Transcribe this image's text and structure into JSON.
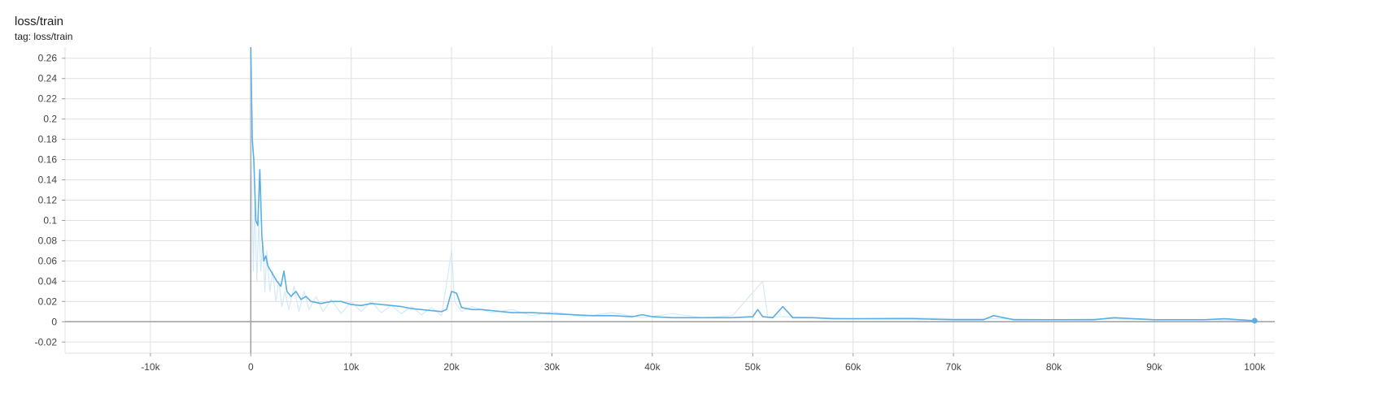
{
  "card": {
    "title": "loss/train",
    "subtitle": "tag: loss/train"
  },
  "chart_data": {
    "type": "line",
    "title": "loss/train",
    "subtitle": "tag: loss/train",
    "xlabel": "",
    "ylabel": "",
    "xlim": [
      -18500,
      102000
    ],
    "ylim": [
      -0.031,
      0.271
    ],
    "x_ticks": [
      -10000,
      0,
      10000,
      20000,
      30000,
      40000,
      50000,
      60000,
      70000,
      80000,
      90000,
      100000
    ],
    "x_tick_labels": [
      "-10k",
      "0",
      "10k",
      "20k",
      "30k",
      "40k",
      "50k",
      "60k",
      "70k",
      "80k",
      "90k",
      "100k"
    ],
    "y_ticks": [
      -0.02,
      0,
      0.02,
      0.04,
      0.06,
      0.08,
      0.1,
      0.12,
      0.14,
      0.16,
      0.18,
      0.2,
      0.22,
      0.24,
      0.26
    ],
    "y_tick_labels": [
      "-0.02",
      "0",
      "0.02",
      "0.04",
      "0.06",
      "0.08",
      "0.1",
      "0.12",
      "0.14",
      "0.16",
      "0.18",
      "0.2",
      "0.22",
      "0.24",
      "0.26"
    ],
    "grid": true,
    "colors": {
      "smoothed": "#5aaee3",
      "raw": "#d3e9f8",
      "grid": "#e0e0e0",
      "axis": "#9e9e9e"
    },
    "series": [
      {
        "role": "smoothed",
        "x": [
          0,
          150,
          300,
          500,
          700,
          900,
          1100,
          1300,
          1500,
          1700,
          2000,
          2300,
          2600,
          3000,
          3300,
          3600,
          4000,
          4500,
          5000,
          5500,
          6000,
          7000,
          8000,
          9000,
          10000,
          11000,
          12000,
          13000,
          14000,
          15000,
          16000,
          17000,
          18000,
          19000,
          19500,
          20000,
          20500,
          21000,
          22000,
          23000,
          24000,
          25000,
          26000,
          28000,
          30000,
          32000,
          34000,
          36000,
          38000,
          39000,
          40000,
          42000,
          44000,
          46000,
          48000,
          50000,
          50500,
          51000,
          52000,
          53000,
          54000,
          56000,
          58000,
          60000,
          63000,
          66000,
          70000,
          73000,
          74000,
          76000,
          80000,
          84000,
          86000,
          90000,
          95000,
          97000,
          100000
        ],
        "y": [
          0.27,
          0.18,
          0.16,
          0.1,
          0.095,
          0.15,
          0.085,
          0.06,
          0.065,
          0.055,
          0.05,
          0.045,
          0.04,
          0.035,
          0.05,
          0.03,
          0.025,
          0.03,
          0.022,
          0.025,
          0.02,
          0.018,
          0.02,
          0.02,
          0.017,
          0.016,
          0.018,
          0.017,
          0.016,
          0.015,
          0.013,
          0.012,
          0.011,
          0.01,
          0.012,
          0.03,
          0.028,
          0.014,
          0.012,
          0.012,
          0.011,
          0.01,
          0.009,
          0.009,
          0.008,
          0.007,
          0.006,
          0.006,
          0.005,
          0.007,
          0.005,
          0.004,
          0.004,
          0.004,
          0.004,
          0.005,
          0.012,
          0.005,
          0.004,
          0.015,
          0.004,
          0.004,
          0.003,
          0.003,
          0.003,
          0.003,
          0.002,
          0.002,
          0.006,
          0.002,
          0.002,
          0.002,
          0.004,
          0.002,
          0.002,
          0.003,
          0.001
        ]
      },
      {
        "role": "raw",
        "x": [
          0,
          100,
          250,
          400,
          600,
          800,
          1000,
          1200,
          1400,
          1600,
          1900,
          2200,
          2500,
          2800,
          3100,
          3400,
          3800,
          4300,
          4800,
          5300,
          5800,
          6500,
          7200,
          8000,
          9000,
          10000,
          11000,
          12000,
          13000,
          14000,
          15000,
          16000,
          17000,
          18000,
          19000,
          20000,
          20300,
          21000,
          22000,
          24000,
          26000,
          28000,
          30000,
          33000,
          36000,
          39000,
          42000,
          45000,
          48000,
          51000,
          51500,
          54000,
          57000,
          60000,
          65000,
          70000,
          75000,
          80000,
          85000,
          90000,
          95000,
          100000
        ],
        "y": [
          0.26,
          0.14,
          0.05,
          0.12,
          0.04,
          0.1,
          0.05,
          0.08,
          0.03,
          0.07,
          0.03,
          0.05,
          0.02,
          0.04,
          0.015,
          0.03,
          0.012,
          0.035,
          0.01,
          0.03,
          0.012,
          0.025,
          0.01,
          0.022,
          0.008,
          0.02,
          0.01,
          0.02,
          0.009,
          0.016,
          0.008,
          0.015,
          0.007,
          0.014,
          0.006,
          0.07,
          0.02,
          0.01,
          0.015,
          0.009,
          0.012,
          0.006,
          0.01,
          0.005,
          0.009,
          0.004,
          0.008,
          0.004,
          0.006,
          0.04,
          0.005,
          0.005,
          0.004,
          0.003,
          0.004,
          0.003,
          0.003,
          0.002,
          0.003,
          0.002,
          0.002,
          0.001
        ]
      }
    ],
    "last_point": {
      "x": 100000,
      "y": 0.001
    }
  }
}
